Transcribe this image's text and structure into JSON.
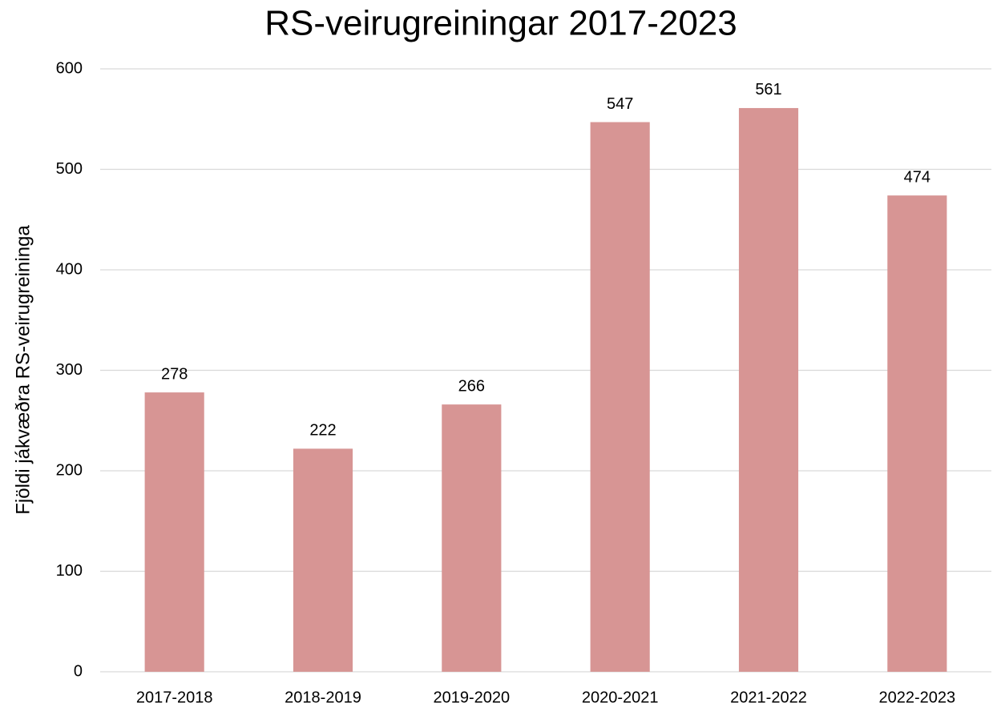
{
  "chart_data": {
    "type": "bar",
    "title": "RS-veirugreiningar 2017-2023",
    "y_label": "Fjöldi jákvæðra RS-veirugreininga",
    "categories": [
      "2017-2018",
      "2018-2019",
      "2019-2020",
      "2020-2021",
      "2021-2022",
      "2022-2023"
    ],
    "values": [
      278,
      222,
      266,
      547,
      561,
      474
    ],
    "color": "#d79594",
    "ylim": [
      0,
      600
    ],
    "yticks": [
      0,
      100,
      200,
      300,
      400,
      500,
      600
    ],
    "grid": true,
    "data_labels": true
  }
}
